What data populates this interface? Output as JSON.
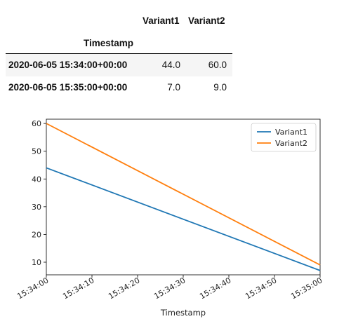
{
  "table": {
    "columns": [
      "Variant1",
      "Variant2"
    ],
    "index_name": "Timestamp",
    "rows": [
      {
        "index": "2020-06-05 15:34:00+00:00",
        "Variant1": "44.0",
        "Variant2": "60.0"
      },
      {
        "index": "2020-06-05 15:35:00+00:00",
        "Variant1": "7.0",
        "Variant2": "9.0"
      }
    ]
  },
  "chart_data": {
    "type": "line",
    "x": [
      "15:34:00",
      "15:35:00"
    ],
    "xlabel": "Timestamp",
    "ylabel": "",
    "xticks": [
      "15:34:00",
      "15:34:10",
      "15:34:20",
      "15:34:30",
      "15:34:40",
      "15:34:50",
      "15:35:00"
    ],
    "yticks": [
      10,
      20,
      30,
      40,
      50,
      60
    ],
    "ylim": [
      5.45,
      61.55
    ],
    "grid": false,
    "legend_position": "top-right",
    "series": [
      {
        "name": "Variant1",
        "values": [
          44.0,
          7.0
        ],
        "color": "#1f77b4"
      },
      {
        "name": "Variant2",
        "values": [
          60.0,
          9.0
        ],
        "color": "#ff7f0e"
      }
    ]
  }
}
